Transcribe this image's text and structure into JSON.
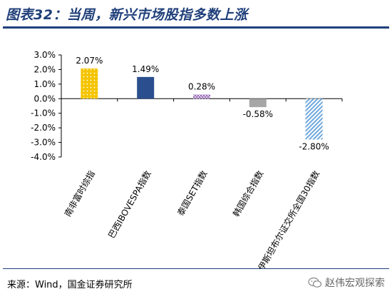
{
  "title": "图表32：当周，新兴市场股指多数上涨",
  "source": "来源：Wind，国金证券研究所",
  "watermark": "赵伟宏观探索",
  "chart_data": {
    "type": "bar",
    "categories": [
      "南非富时综指",
      "巴西IBOVESPA指数",
      "泰国SET指数",
      "韩国综合指数",
      "伊斯坦布尔证交所全国30指数"
    ],
    "values": [
      2.07,
      1.49,
      0.28,
      -0.58,
      -2.8
    ],
    "data_labels": [
      "2.07%",
      "1.49%",
      "0.28%",
      "-0.58%",
      "-2.80%"
    ],
    "y_ticks": [
      "3.0%",
      "2.0%",
      "1.0%",
      "0.0%",
      "-1.0%",
      "-2.0%",
      "-3.0%",
      "-4.0%"
    ],
    "ylim": [
      -4,
      3
    ],
    "colors": [
      "#f5c400",
      "#2b4f8e",
      "#8e5bb0",
      "#a6a6a6",
      "#6fa8dc"
    ],
    "patterns": [
      "dots",
      "solid",
      "crosshatch",
      "solid",
      "diagonal-stripes"
    ]
  }
}
